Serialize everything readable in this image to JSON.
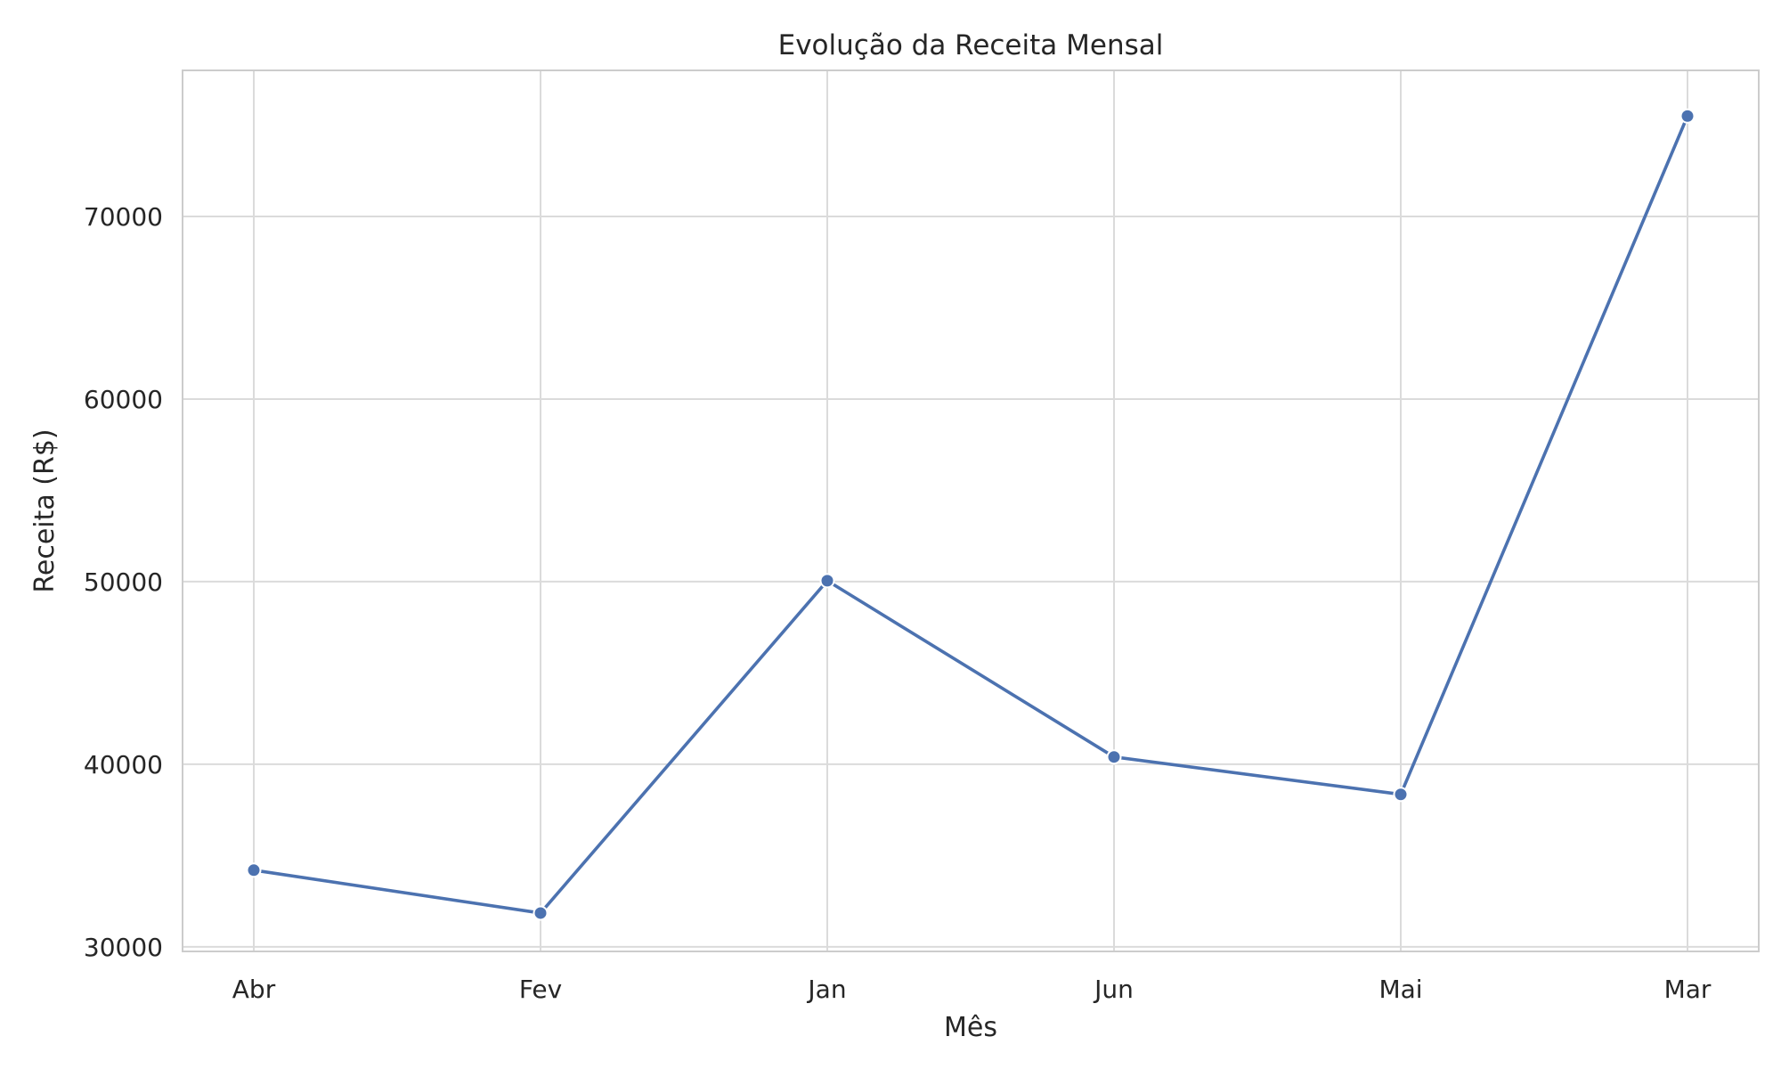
{
  "chart_data": {
    "type": "line",
    "title": "Evolução da Receita Mensal",
    "xlabel": "Mês",
    "ylabel": "Receita (R$)",
    "categories": [
      "Abr",
      "Fev",
      "Jan",
      "Jun",
      "Mai",
      "Mar"
    ],
    "series": [
      {
        "values": [
          34200,
          31850,
          50050,
          40400,
          38350,
          75500
        ]
      }
    ],
    "ylim": [
      29750,
      78000
    ],
    "yticks": [
      30000,
      40000,
      50000,
      60000,
      70000
    ],
    "ytick_labels": [
      "30000",
      "40000",
      "50000",
      "60000",
      "70000"
    ],
    "grid": true,
    "legend": "none",
    "colors": {
      "line": "#4c72b0",
      "grid": "#dbdbdb",
      "spine": "#cccccc",
      "text": "#262626",
      "background": "#ffffff"
    }
  }
}
